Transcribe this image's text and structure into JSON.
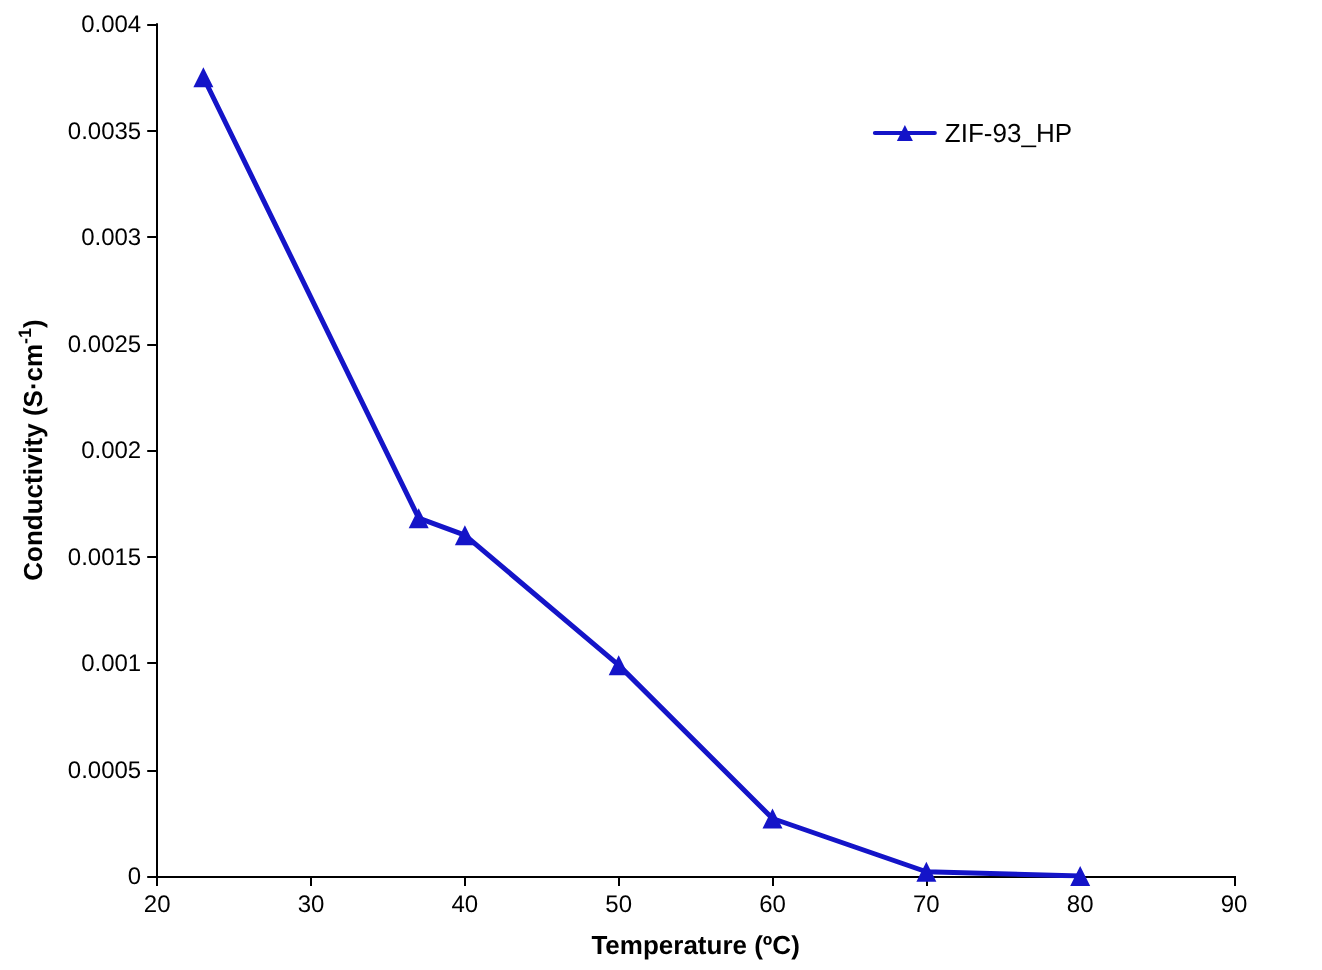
{
  "chart_data": {
    "type": "line",
    "xlabel": "Temperature (ºC)",
    "ylabel": "Conductivity (S·cm$^{-1}$)",
    "x": [
      23,
      37,
      40,
      50,
      60,
      70,
      80
    ],
    "series": [
      {
        "name": "ZIF-93_HP",
        "color": "#1414c8",
        "values": [
          0.00375,
          0.00168,
          0.0016,
          0.00099,
          0.00027,
          2e-05,
          0.0
        ]
      }
    ],
    "xlim": [
      20,
      90
    ],
    "xticks": [
      20,
      30,
      40,
      50,
      60,
      70,
      80,
      90
    ],
    "ylim": [
      0,
      0.004
    ],
    "yticks": [
      0,
      0.0005,
      0.001,
      0.0015,
      0.002,
      0.0025,
      0.003,
      0.0035,
      0.004
    ],
    "grid": false,
    "legend": "top right",
    "marker": "triangle",
    "line_style": "solid"
  }
}
